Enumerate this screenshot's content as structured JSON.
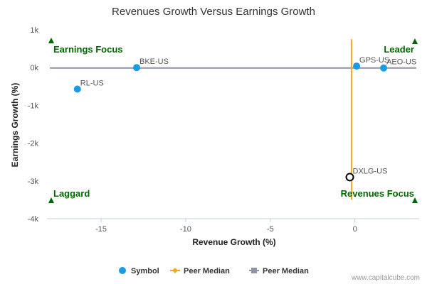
{
  "chart_data": {
    "type": "scatter",
    "title": "Revenues Growth Versus Earnings Growth",
    "xlabel": "Revenue Growth (%)",
    "ylabel": "Earnings Growth (%)",
    "xlim": [
      -18.2,
      3.8
    ],
    "ylim": [
      -4000,
      1000
    ],
    "x_ticks": [
      -15,
      -10,
      -5,
      0
    ],
    "x_tick_labels": [
      "-15",
      "-10",
      "-5",
      "0"
    ],
    "y_ticks": [
      1000,
      0,
      -1000,
      -2000,
      -3000,
      -4000
    ],
    "y_tick_labels": [
      "1k",
      "0k",
      "-1k",
      "-2k",
      "-3k",
      "-4k"
    ],
    "series": [
      {
        "name": "Symbol",
        "color": "#1a9be6",
        "points": [
          {
            "label": "BKE-US",
            "x": -12.9,
            "y": 0
          },
          {
            "label": "RL-US",
            "x": -16.4,
            "y": -570
          },
          {
            "label": "GPS-US",
            "x": 0.1,
            "y": 40
          },
          {
            "label": "AEO-US",
            "x": 1.7,
            "y": -10
          }
        ]
      }
    ],
    "highlight_point": {
      "label": "DXLG-US",
      "x": -0.3,
      "y": -2900,
      "marker": "open-circle",
      "color": "#000000"
    },
    "peer_median_revenue": {
      "name": "Peer Median",
      "x": -0.2,
      "y_range": [
        -3500,
        750
      ],
      "color": "#f5a623"
    },
    "peer_median_earnings": {
      "name": "Peer Median",
      "y": -10,
      "color": "#8c95a6"
    },
    "quadrant_labels": {
      "top_left": "Earnings Focus",
      "top_right": "Leader",
      "bottom_left": "Laggard",
      "bottom_right": "Revenues Focus"
    },
    "quadrant_marker_color": "#006600",
    "legend": {
      "placement": "bottom",
      "items": [
        {
          "label": "Symbol",
          "marker": "circle",
          "color": "#1a9be6"
        },
        {
          "label": "Peer Median",
          "marker": "diamond-line",
          "color": "#f5a623"
        },
        {
          "label": "Peer Median",
          "marker": "square-line",
          "color": "#8c95a6"
        }
      ]
    },
    "grid": false,
    "credit": "www.capitalcube.com"
  }
}
